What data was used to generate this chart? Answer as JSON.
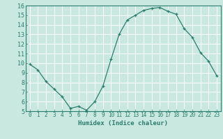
{
  "x": [
    0,
    1,
    2,
    3,
    4,
    5,
    6,
    7,
    8,
    9,
    10,
    11,
    12,
    13,
    14,
    15,
    16,
    17,
    18,
    19,
    20,
    21,
    22,
    23
  ],
  "y": [
    9.9,
    9.3,
    8.1,
    7.3,
    6.5,
    5.3,
    5.5,
    5.1,
    6.0,
    7.6,
    10.4,
    13.0,
    14.5,
    15.0,
    15.5,
    15.7,
    15.8,
    15.4,
    15.1,
    13.6,
    12.7,
    11.1,
    10.2,
    8.7
  ],
  "xlim": [
    -0.5,
    23.5
  ],
  "ylim": [
    5,
    16
  ],
  "yticks": [
    5,
    6,
    7,
    8,
    9,
    10,
    11,
    12,
    13,
    14,
    15,
    16
  ],
  "xticks": [
    0,
    1,
    2,
    3,
    4,
    5,
    6,
    7,
    8,
    9,
    10,
    11,
    12,
    13,
    14,
    15,
    16,
    17,
    18,
    19,
    20,
    21,
    22,
    23
  ],
  "xlabel": "Humidex (Indice chaleur)",
  "line_color": "#2d7d6e",
  "marker": "+",
  "bg_color": "#c8e8e0",
  "grid_color": "#ffffff",
  "tick_color": "#2d7d6e",
  "label_fontsize": 6.5,
  "tick_fontsize": 5.5
}
